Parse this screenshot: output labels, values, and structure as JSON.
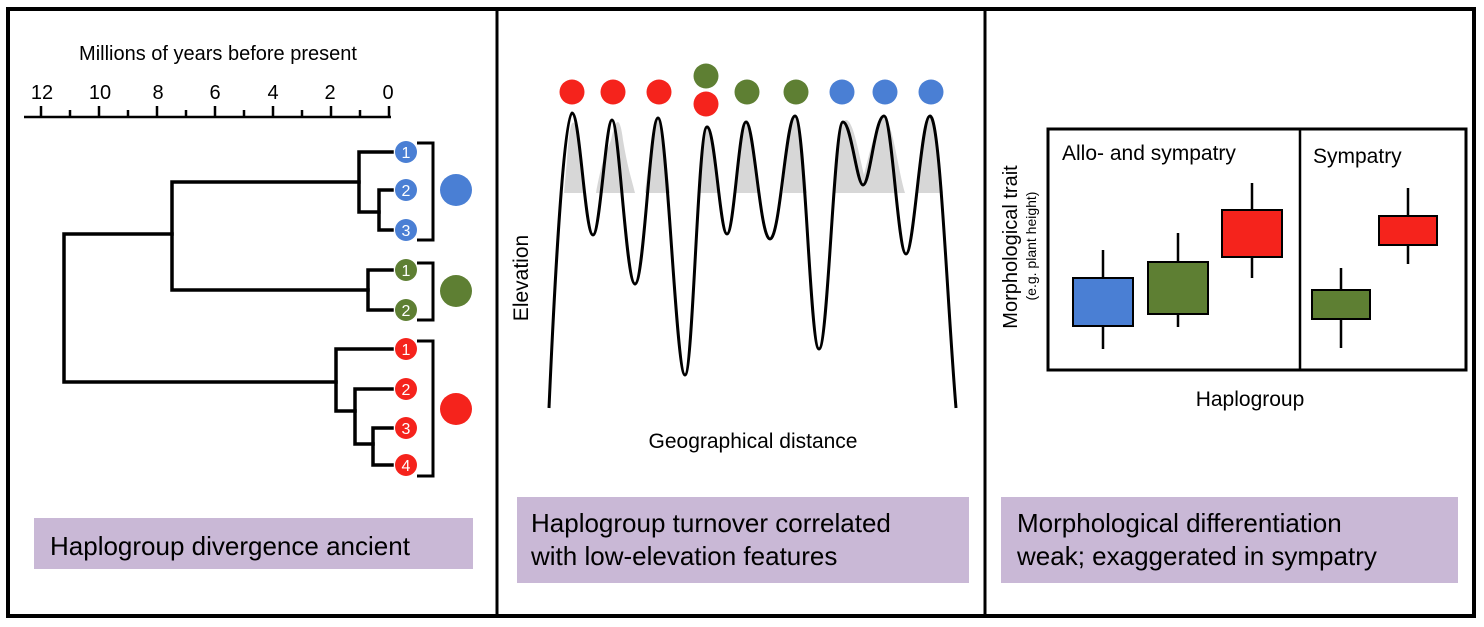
{
  "colors": {
    "blue": "#4a7fd4",
    "green": "#5e7f33",
    "red": "#f5231c",
    "caption_bg": "#c9b8d6",
    "ridge_fill": "#d7d7d7"
  },
  "panel1": {
    "axis_title": "Millions of years before present",
    "ticks": [
      "12",
      "10",
      "8",
      "6",
      "4",
      "2",
      "0"
    ],
    "tips": {
      "blue": [
        "1",
        "2",
        "3"
      ],
      "green": [
        "1",
        "2"
      ],
      "red": [
        "1",
        "2",
        "3",
        "4"
      ]
    },
    "caption": "Haplogroup divergence ancient"
  },
  "panel2": {
    "top_dots": [
      "red",
      "red",
      "red",
      "green+red",
      "green",
      "green",
      "blue",
      "blue",
      "blue"
    ],
    "y_label": "Elevation",
    "x_label": "Geographical distance",
    "caption_line1": "Haplogroup turnover correlated",
    "caption_line2": "with low-elevation features"
  },
  "panel3": {
    "y_label": "Morphological trait",
    "y_sublabel": "(e.g. plant height)",
    "section1_title": "Allo- and sympatry",
    "section2_title": "Sympatry",
    "x_label": "Haplogroup",
    "box_colors": [
      "blue",
      "green",
      "red",
      "green",
      "red"
    ],
    "caption_line1": "Morphological differentiation",
    "caption_line2": "weak; exaggerated in sympatry"
  }
}
